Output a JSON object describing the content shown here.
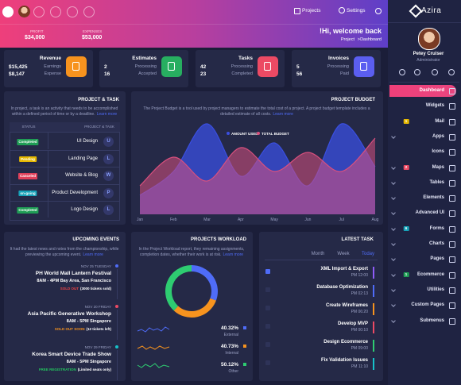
{
  "header": {
    "projects": "Projects",
    "settings": "Settings"
  },
  "banner": {
    "profit_label": "PROFIT",
    "profit": "$34,000",
    "expenses_label": "EXPENSES",
    "expenses": "$53,000",
    "welcome": "!Hi, welcome back",
    "crumb_1": "Project",
    "crumb_2": "Dashboard"
  },
  "stats": [
    {
      "title": "Revenue",
      "color": "#f7931e",
      "rows": [
        {
          "value": "$15,425",
          "label": "Earnings"
        },
        {
          "value": "$8,147",
          "label": "Expense"
        }
      ]
    },
    {
      "title": "Estimates",
      "color": "#27ae60",
      "rows": [
        {
          "value": "2",
          "label": "Processing"
        },
        {
          "value": "16",
          "label": "Accepted"
        }
      ]
    },
    {
      "title": "Tasks",
      "color": "#ec4a64",
      "rows": [
        {
          "value": "42",
          "label": "Processing"
        },
        {
          "value": "23",
          "label": "Completed"
        }
      ]
    },
    {
      "title": "Invoices",
      "color": "#5b5ef0",
      "rows": [
        {
          "value": "5",
          "label": "Processing"
        },
        {
          "value": "56",
          "label": "Paid"
        }
      ]
    }
  ],
  "project_task": {
    "title": "PROJECT & TASK",
    "desc_1": "In project, a task is an activity that needs to be accomplished",
    "desc_2": "within a defined period of time or by a deadline.",
    "learn": "Learn more",
    "col_status": "STATUS",
    "col_task": "PROJECT & TASK",
    "rows": [
      {
        "status": "Completed",
        "color": "#1f9d55",
        "name": "UI Design",
        "initial": "U"
      },
      {
        "status": "Pending",
        "color": "#e6b800",
        "name": "Landing Page",
        "initial": "L"
      },
      {
        "status": "Canceled",
        "color": "#e0405a",
        "name": "Website & Blog",
        "initial": "W"
      },
      {
        "status": "on-going",
        "color": "#17a2b8",
        "name": "Product Development",
        "initial": "P"
      },
      {
        "status": "Completed",
        "color": "#1f9d55",
        "name": "Logo Design",
        "initial": "L"
      }
    ]
  },
  "budget": {
    "title": "PROJECT BUDGET",
    "desc_1": "The Project Budget is a tool used by project managers to estimate the total cost of a project. A project budget template includes a",
    "desc_2": "detailed estimate of all costs.",
    "learn": "Learn more",
    "chart": {
      "type": "area",
      "categories": [
        "Jan",
        "Feb",
        "Mar",
        "Apr",
        "May",
        "Jun",
        "Jul",
        "Aug"
      ],
      "ylim": [
        0,
        100
      ],
      "series": [
        {
          "name": "AMOUNT USED",
          "color": "#3a4fe0",
          "values": [
            20,
            45,
            95,
            40,
            75,
            30,
            95,
            50
          ]
        },
        {
          "name": "TOTAL BUDGET",
          "color": "#d9507e",
          "values": [
            30,
            60,
            35,
            70,
            45,
            65,
            45,
            80
          ]
        }
      ]
    }
  },
  "events": {
    "title": "UPCOMING EVENTS",
    "desc_1": "It had the latest news and notes from the championship, while",
    "desc_2": "previewing the upcoming event.",
    "learn": "Learn more",
    "items": [
      {
        "date": "NOV 25 TUESDAY",
        "dot": "#4f6cf7",
        "name": "PH World Mall Lantern Festival",
        "time": "8AM - 4PM Bay Area, San Francisco",
        "status": "SOLD OUT",
        "status_color": "#ef4444",
        "note": "(3000 tickets sold)"
      },
      {
        "date": "NOV 20 FRIDAY",
        "dot": "#ec4a64",
        "name": "Asia Pacific Generative Workshop",
        "time": "8AM - 5PM Singapore",
        "status": "SOLD OUT SOON",
        "status_color": "#f7931e",
        "note": "(12 tickets left)"
      },
      {
        "date": "NOV 29 FRIDAY",
        "dot": "#17c1c9",
        "name": "Korea Smart Device Trade Show",
        "time": "8AM - 5PM Singapore",
        "status": "FREE REGISTRATION",
        "status_color": "#22c55e",
        "note": "(Limited seats only)"
      }
    ]
  },
  "workload": {
    "title": "PROJECTS WORKLOAD",
    "desc_1": "In the Project Workload report, they remaining assignments,",
    "desc_2": "completion dates, whether their work is at risk.",
    "learn": "Learn more",
    "chart": {
      "type": "donut",
      "items": [
        {
          "value": 40.32,
          "label": "40.32%",
          "name": "External",
          "color": "#4f6cf7"
        },
        {
          "value": 40.73,
          "label": "40.73%",
          "name": "Internal",
          "color": "#f7931e"
        },
        {
          "value": 50.12,
          "label": "50.12%",
          "name": "Other",
          "color": "#2ecc71"
        }
      ]
    }
  },
  "latest": {
    "title": "LATEST TASK",
    "tabs": [
      "Month",
      "Week",
      "Today"
    ],
    "items": [
      {
        "name": "XML Import & Export",
        "time": "PM 12:00",
        "checked": true,
        "color": "#8e5cf7"
      },
      {
        "name": "Database Optimization",
        "time": "PM 02:13",
        "checked": false,
        "color": "#4f6cf7"
      },
      {
        "name": "Create Wireframes",
        "time": "PM 06:20",
        "checked": false,
        "color": "#f7931e"
      },
      {
        "name": "Develop MVP",
        "time": "PM 00:10",
        "checked": false,
        "color": "#ec4a64"
      },
      {
        "name": "Design Ecommerce",
        "time": "PM 09:00",
        "checked": false,
        "color": "#2ecc71"
      },
      {
        "name": "Fix Validation Issues",
        "time": "PM 11:10",
        "checked": false,
        "color": "#17c1c9"
      }
    ]
  },
  "sidebar": {
    "brand": "Azira",
    "user": "Petey Cruiser",
    "role": "Administrator",
    "menu": [
      {
        "label": "Dashboard",
        "active": true,
        "sub": false
      },
      {
        "label": "Widgets",
        "sub": false
      },
      {
        "label": "Mail",
        "badge": "1",
        "badge_color": "#e6b800",
        "sub": false
      },
      {
        "label": "Apps",
        "sub": true
      },
      {
        "label": "Icons",
        "sub": false
      },
      {
        "label": "Maps",
        "badge": "2",
        "badge_color": "#ec4a64",
        "sub": true
      },
      {
        "label": "Tables",
        "sub": true
      },
      {
        "label": "Elements",
        "sub": true
      },
      {
        "label": "Advanced UI",
        "sub": true
      },
      {
        "label": "Forms",
        "badge": "6",
        "badge_color": "#17a2b8",
        "sub": true
      },
      {
        "label": "Charts",
        "sub": true
      },
      {
        "label": "Pages",
        "sub": true
      },
      {
        "label": "Ecommerce",
        "badge": "1",
        "badge_color": "#1f9d55",
        "sub": true
      },
      {
        "label": "Utilities",
        "sub": true
      },
      {
        "label": "Custom Pages",
        "sub": true
      },
      {
        "label": "Submenus",
        "sub": true
      }
    ]
  }
}
